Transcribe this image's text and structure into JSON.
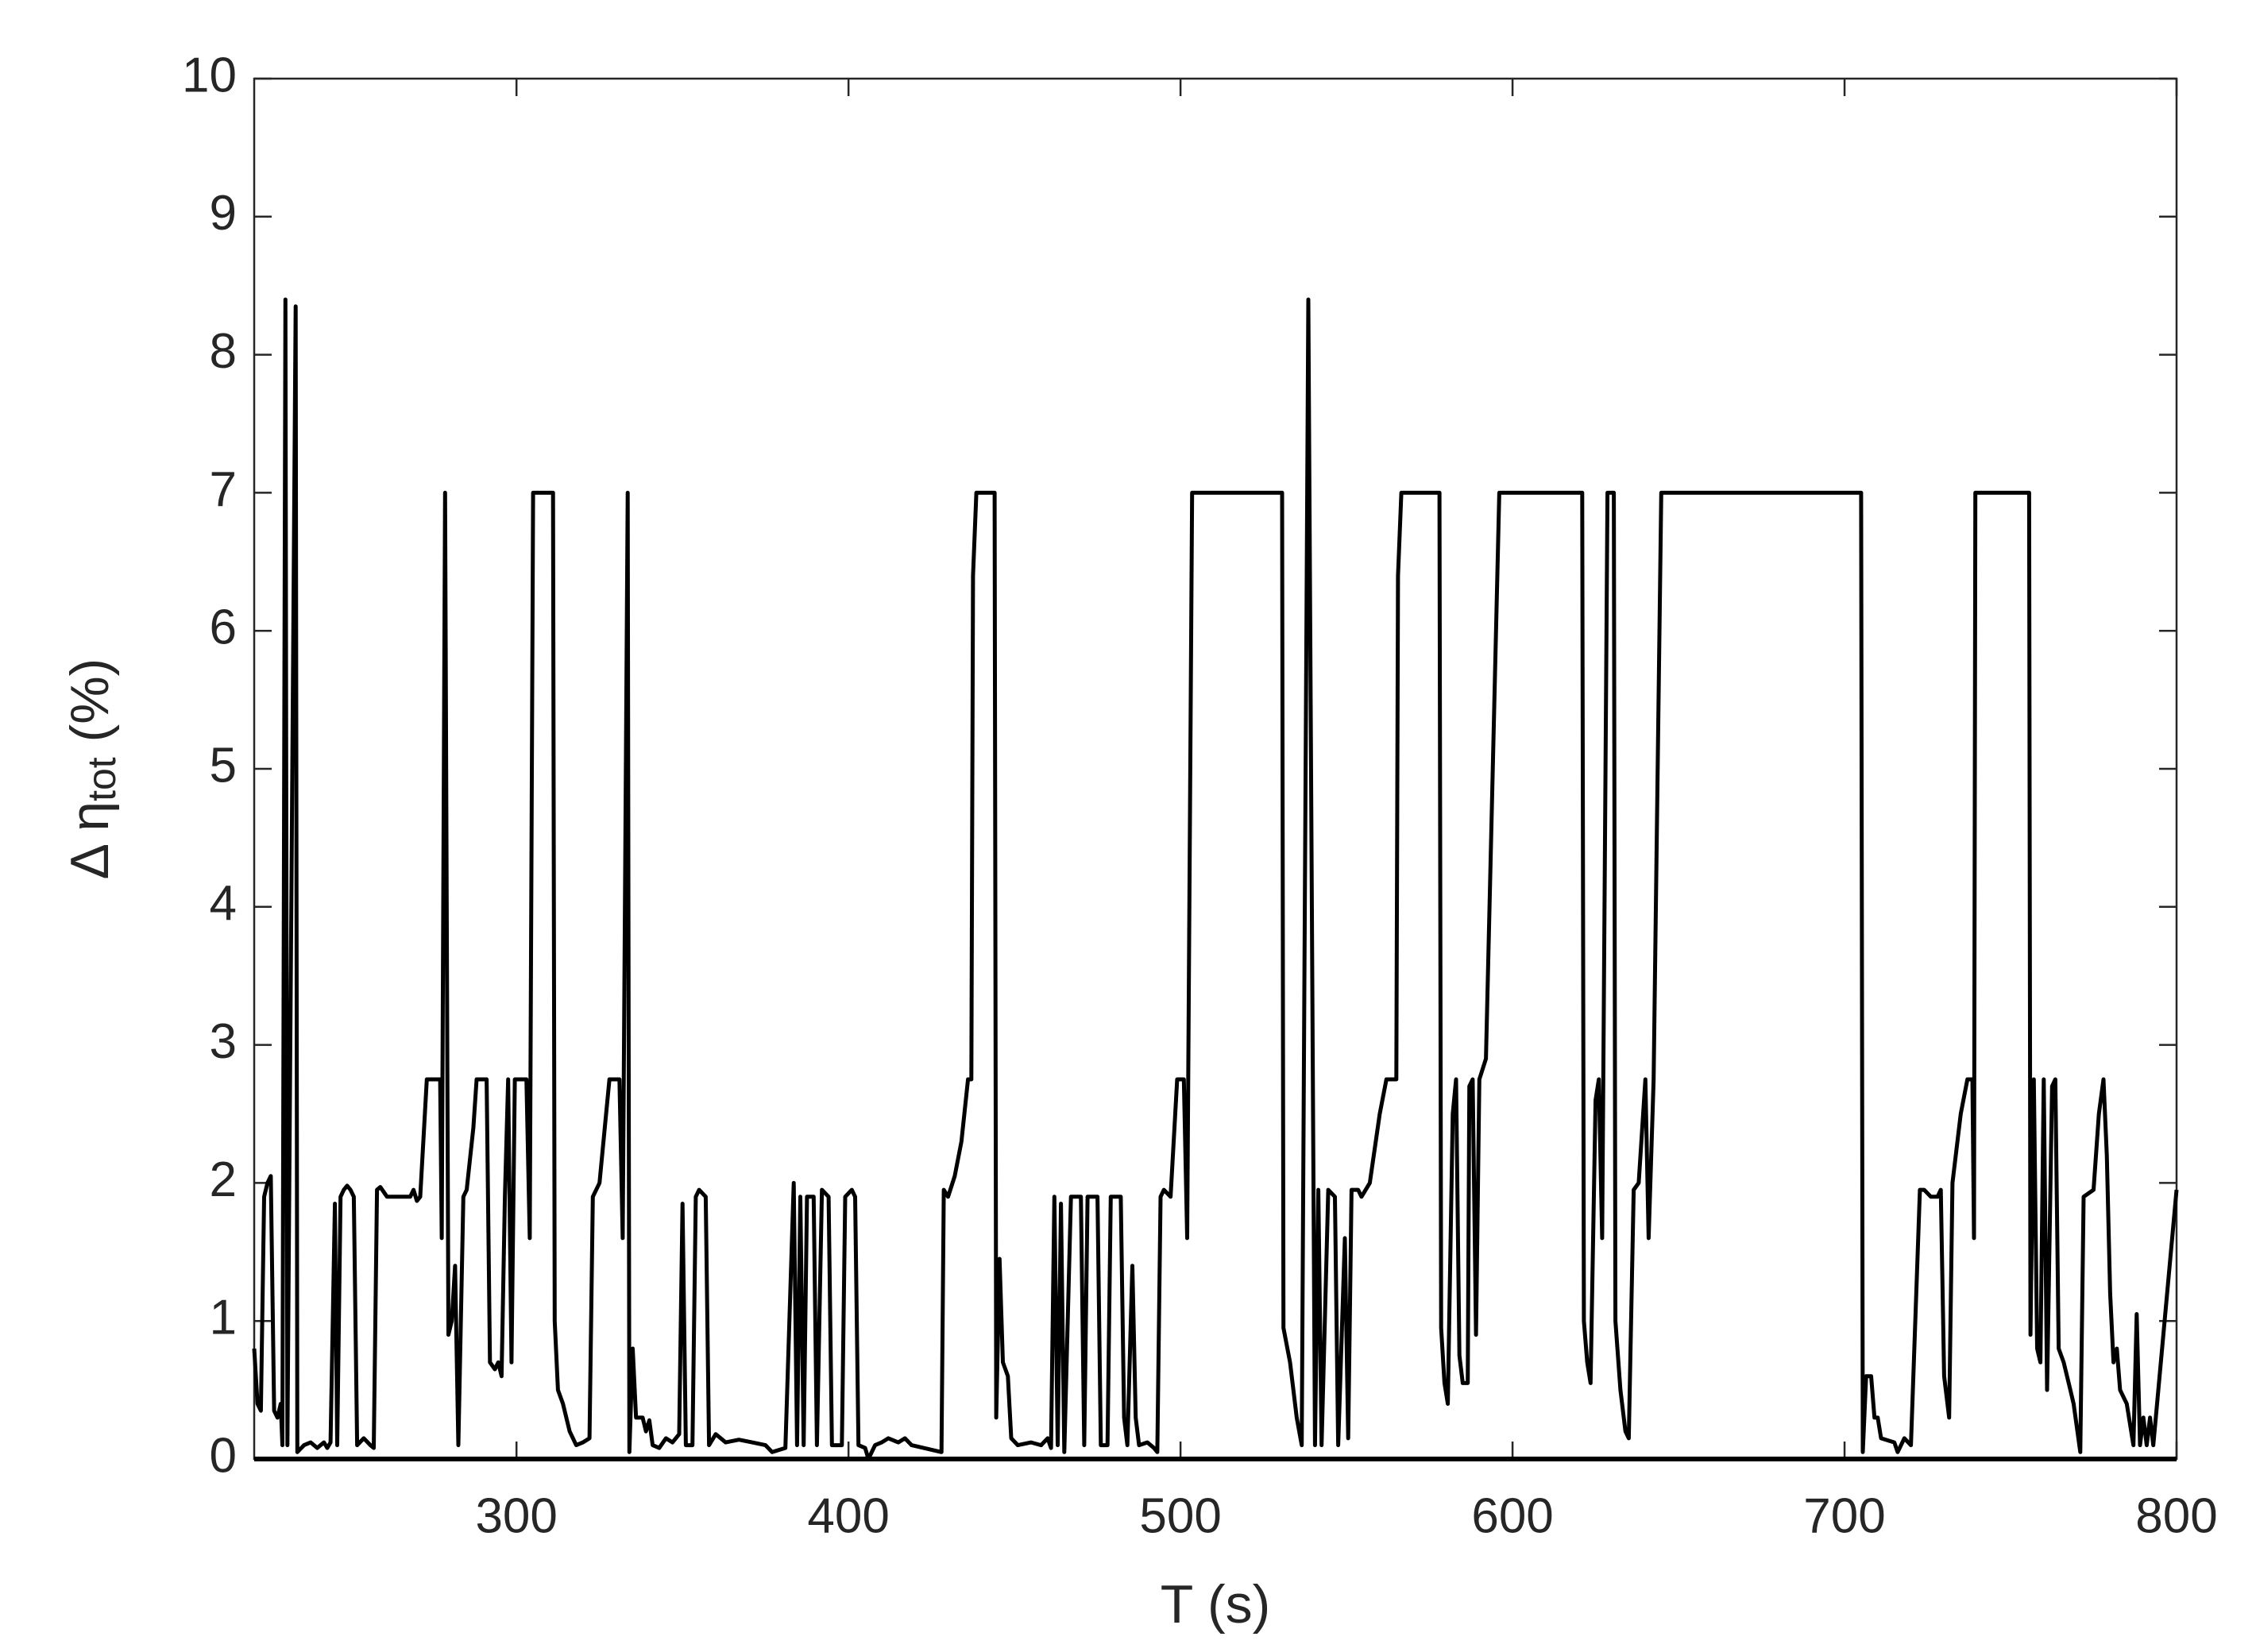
{
  "chart_data": {
    "type": "line",
    "xlabel": "T (s)",
    "ylabel": [
      "Δ η",
      "tot",
      " (%)"
    ],
    "xlim": [
      221,
      800
    ],
    "ylim": [
      0,
      10
    ],
    "xticks": [
      300,
      400,
      500,
      600,
      700,
      800
    ],
    "yticks": [
      0,
      1,
      2,
      3,
      4,
      5,
      6,
      7,
      8,
      9,
      10
    ],
    "grid": false,
    "series": [
      {
        "color": "#000000",
        "x": [
          221,
          222,
          223,
          224,
          225,
          226,
          227,
          228,
          229,
          229.5,
          230.4,
          231,
          233.5,
          234,
          236,
          238,
          240,
          242,
          243,
          244,
          245.3,
          246,
          247,
          248,
          249,
          250,
          251,
          252,
          254,
          256,
          257,
          258,
          259,
          261,
          266,
          268,
          269,
          270,
          271,
          273,
          277,
          277.5,
          278.5,
          279.5,
          280.5,
          281.5,
          282.5,
          284,
          285,
          287,
          288,
          291,
          292,
          293.5,
          294.5,
          295.5,
          296.5,
          297.5,
          298.5,
          299.5,
          303,
          304,
          305,
          311,
          311.5,
          312.5,
          314,
          316,
          318,
          320,
          322,
          323,
          325,
          327,
          328,
          331,
          332,
          333.5,
          334,
          335,
          336,
          338,
          339,
          340,
          341,
          343,
          345,
          347,
          349,
          350,
          351,
          353,
          354,
          355,
          357,
          358,
          360,
          363,
          367,
          371,
          375,
          377,
          381,
          383.5,
          384.5,
          385.5,
          386.5,
          387.5,
          389.5,
          390.5,
          392,
          394,
          395,
          398,
          399,
          401,
          402,
          403,
          405,
          406,
          408,
          410,
          412,
          415,
          417,
          419,
          428,
          428.7,
          430,
          432,
          434,
          436,
          437,
          437.5,
          438.5,
          444,
          444.5,
          445.5,
          446.5,
          448,
          449,
          451,
          455,
          458,
          460,
          461,
          462,
          463,
          464,
          465,
          467,
          470,
          471,
          472,
          475,
          476,
          478,
          479,
          482,
          483,
          484,
          485.5,
          486.5,
          487.5,
          490,
          492,
          493,
          494,
          495,
          497,
          499,
          501,
          502,
          503.5,
          530.6,
          531,
          533,
          535,
          536.5,
          538.5,
          540.5,
          541.5,
          542.5,
          544.5,
          546.5,
          547.5,
          549.5,
          550.5,
          551.5,
          553.5,
          554.5,
          557,
          560,
          562,
          565,
          565.5,
          566.5,
          578,
          578.5,
          579.5,
          580.5,
          582,
          583,
          584,
          585,
          586.5,
          587,
          588,
          589,
          590,
          592,
          596,
          621,
          621.5,
          622.5,
          623.5,
          625,
          626,
          627,
          628.6,
          630.5,
          631,
          632.5,
          634,
          635,
          636.5,
          638,
          640,
          641,
          642.5,
          644.8,
          705,
          705.5,
          706.5,
          708,
          709,
          710,
          711,
          715,
          716,
          718,
          720,
          722.7,
          724,
          726,
          728,
          729,
          730,
          731.5,
          732.5,
          735,
          737,
          738.5,
          739,
          739.4,
          755.6,
          756,
          757,
          758,
          759,
          760,
          761,
          762.5,
          763.5,
          764.5,
          766,
          768,
          769,
          771,
          772,
          775,
          776.6,
          778,
          779,
          780,
          781,
          782,
          783,
          785,
          787,
          788,
          789,
          790,
          791,
          792,
          793,
          800
        ],
        "values": [
          0.8,
          0.4,
          0.35,
          1.9,
          2.0,
          2.05,
          0.35,
          0.3,
          0.4,
          0.1,
          8.4,
          0.1,
          8.35,
          0.05,
          0.1,
          0.12,
          0.08,
          0.12,
          0.08,
          0.12,
          1.85,
          0.1,
          1.9,
          1.95,
          1.98,
          1.95,
          1.9,
          0.1,
          0.15,
          0.1,
          0.08,
          1.95,
          1.97,
          1.9,
          1.9,
          1.9,
          1.95,
          1.87,
          1.9,
          2.75,
          2.75,
          1.6,
          7.0,
          0.9,
          1.0,
          1.4,
          0.1,
          1.9,
          1.95,
          2.4,
          2.75,
          2.75,
          0.7,
          0.65,
          0.7,
          0.6,
          1.9,
          2.75,
          0.7,
          2.75,
          2.75,
          1.6,
          7.0,
          7.0,
          1.0,
          0.5,
          0.4,
          0.2,
          0.1,
          0.12,
          0.15,
          1.9,
          2.0,
          2.5,
          2.75,
          2.75,
          1.6,
          7.0,
          0.05,
          0.8,
          0.3,
          0.3,
          0.2,
          0.28,
          0.1,
          0.08,
          0.15,
          0.12,
          0.18,
          1.85,
          0.1,
          0.1,
          1.9,
          1.95,
          1.9,
          0.1,
          0.18,
          0.12,
          0.14,
          0.12,
          0.1,
          0.05,
          0.08,
          2.0,
          0.1,
          1.9,
          0.1,
          1.9,
          1.9,
          0.1,
          1.95,
          1.9,
          0.1,
          0.1,
          1.9,
          1.95,
          1.9,
          0.1,
          0.08,
          0,
          0.1,
          0.12,
          0.15,
          0.12,
          0.15,
          0.1,
          0.05,
          1.95,
          1.9,
          2.05,
          2.3,
          2.75,
          2.75,
          6.4,
          7.0,
          7.0,
          0.3,
          1.45,
          0.7,
          0.6,
          0.15,
          0.1,
          0.12,
          0.1,
          0.15,
          0.08,
          1.9,
          0.1,
          1.85,
          0.05,
          1.9,
          1.9,
          0.1,
          1.9,
          1.9,
          0.1,
          0.1,
          1.9,
          1.9,
          0.3,
          0.1,
          1.4,
          0.3,
          0.1,
          0.12,
          0.08,
          0.05,
          1.9,
          1.95,
          1.9,
          2.75,
          2.75,
          1.6,
          7.0,
          7.0,
          0.95,
          0.7,
          0.3,
          0.1,
          8.4,
          0.1,
          1.95,
          0.1,
          1.95,
          1.9,
          0.1,
          1.6,
          0.15,
          1.95,
          1.95,
          1.9,
          2.0,
          2.5,
          2.75,
          2.75,
          6.4,
          7.0,
          7.0,
          0.95,
          0.55,
          0.4,
          2.5,
          2.75,
          0.75,
          0.55,
          0.55,
          2.7,
          2.75,
          0.9,
          2.75,
          2.9,
          7.0,
          7.0,
          1.0,
          0.7,
          0.55,
          2.6,
          2.75,
          1.6,
          7.0,
          7.0,
          1.0,
          0.5,
          0.2,
          0.15,
          1.95,
          2.0,
          2.75,
          1.6,
          2.75,
          7.0,
          7.0,
          0.05,
          0.6,
          0.6,
          0.3,
          0.3,
          0.15,
          0.12,
          0.05,
          0.15,
          0.1,
          1.95,
          1.95,
          1.9,
          1.9,
          1.95,
          0.6,
          0.3,
          2.0,
          2.5,
          2.75,
          2.75,
          1.6,
          7.0,
          7.0,
          0.9,
          2.75,
          0.8,
          0.7,
          2.75,
          0.5,
          2.7,
          2.75,
          0.8,
          0.7,
          0.5,
          0.4,
          0.05,
          1.9,
          1.95,
          2.5,
          2.75,
          2.2,
          1.2,
          0.7,
          0.8,
          0.5,
          0.4,
          0.1,
          1.05,
          0.1,
          0.3,
          0.1,
          0.3,
          0.1,
          1.95
        ]
      }
    ]
  }
}
